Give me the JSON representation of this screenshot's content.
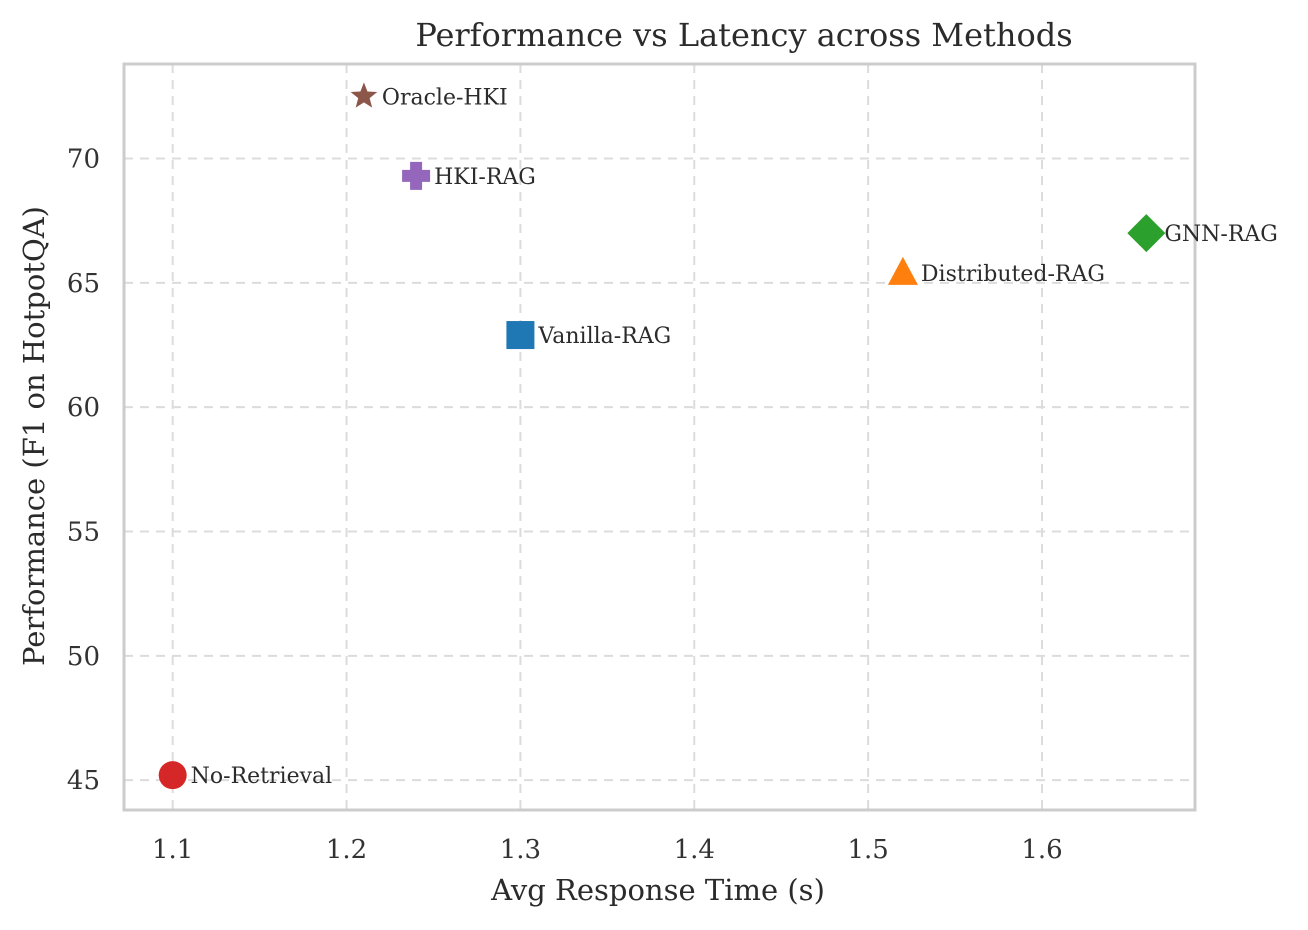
{
  "chart_data": {
    "type": "scatter",
    "title": "Performance vs Latency across Methods",
    "xlabel": "Avg Response Time (s)",
    "ylabel": "Performance (F1 on HotpotQA)",
    "xlim": [
      1.072,
      1.688
    ],
    "ylim": [
      43.8,
      73.8
    ],
    "xticks": [
      1.1,
      1.2,
      1.3,
      1.4,
      1.5,
      1.6
    ],
    "xtick_labels": [
      "1.1",
      "1.2",
      "1.3",
      "1.4",
      "1.5",
      "1.6"
    ],
    "yticks": [
      45,
      50,
      55,
      60,
      65,
      70
    ],
    "ytick_labels": [
      "45",
      "50",
      "55",
      "60",
      "65",
      "70"
    ],
    "grid": true,
    "points": [
      {
        "label": "No-Retrieval",
        "x": 1.1,
        "y": 45.2,
        "marker": "circle",
        "color": "#d62728"
      },
      {
        "label": "Vanilla-RAG",
        "x": 1.3,
        "y": 62.9,
        "marker": "square",
        "color": "#1f77b4"
      },
      {
        "label": "Distributed-RAG",
        "x": 1.52,
        "y": 65.4,
        "marker": "triangle",
        "color": "#ff7f0e"
      },
      {
        "label": "GNN-RAG",
        "x": 1.66,
        "y": 67.0,
        "marker": "diamond",
        "color": "#2ca02c"
      },
      {
        "label": "HKI-RAG",
        "x": 1.24,
        "y": 69.3,
        "marker": "plus",
        "color": "#9467bd"
      },
      {
        "label": "Oracle-HKI",
        "x": 1.21,
        "y": 72.5,
        "marker": "star",
        "color": "#8c564b"
      }
    ]
  }
}
